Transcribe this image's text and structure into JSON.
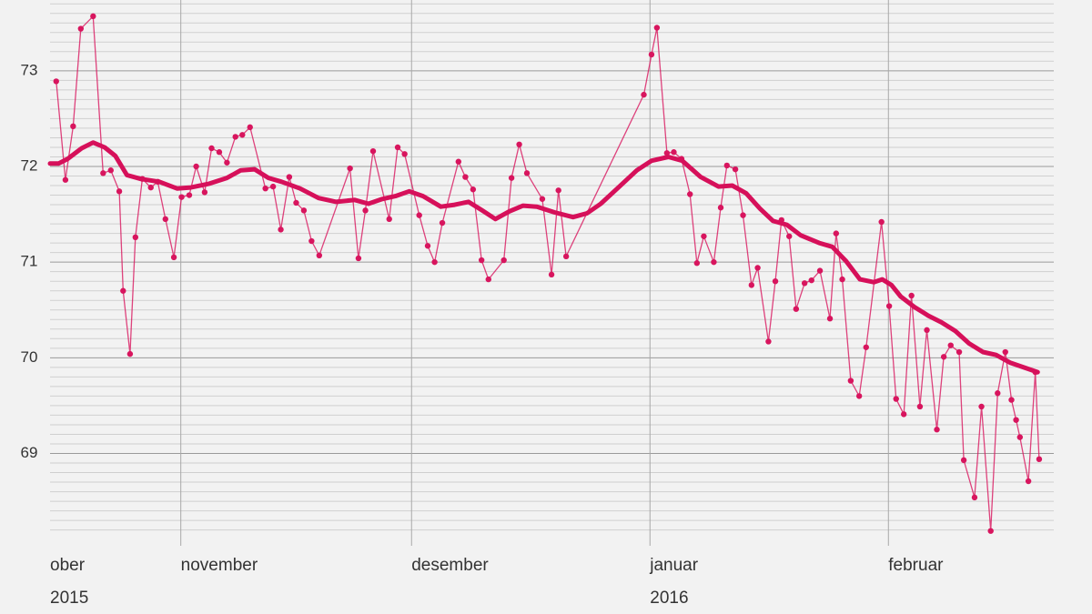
{
  "chart_data": {
    "type": "line",
    "xlim": [
      14.0,
      144.5
    ],
    "ylim": [
      68.13,
      73.74
    ],
    "xticks": [
      {
        "value": 14.0,
        "label": "ober"
      },
      {
        "value": 31,
        "label": "november"
      },
      {
        "value": 61,
        "label": "desember"
      },
      {
        "value": 92,
        "label": "januar"
      },
      {
        "value": 123,
        "label": "februar"
      }
    ],
    "year_labels": [
      {
        "value": 14.0,
        "label": "2015"
      },
      {
        "value": 92,
        "label": "2016"
      }
    ],
    "yticks": [
      69,
      70,
      71,
      72,
      73
    ],
    "minor_grid_step": 0.1,
    "grid": true,
    "series": [
      {
        "color": "#d8155e",
        "markers": true,
        "line_width": 1.3,
        "x": [
          14.8,
          16.0,
          17.0,
          18.0,
          19.6,
          20.9,
          21.9,
          23.0,
          23.5,
          24.4,
          25.1,
          26.0,
          27.1,
          28.0,
          29.0,
          30.1,
          31.1,
          32.1,
          33.0,
          34.1,
          35.0,
          36.0,
          37.0,
          38.1,
          39.0,
          40.0,
          42.0,
          43.0,
          44.0,
          45.1,
          46.0,
          47.0,
          48.0,
          49.0,
          53.0,
          54.1,
          55.0,
          56.0,
          58.1,
          59.2,
          60.1,
          62.0,
          63.1,
          64.0,
          65.0,
          67.1,
          68.0,
          69.0,
          70.1,
          71.0,
          73.0,
          74.0,
          75.0,
          76.0,
          78.0,
          79.2,
          80.1,
          81.1,
          91.2,
          92.2,
          92.9,
          94.2,
          95.1,
          96.1,
          97.2,
          98.1,
          99.0,
          100.3,
          101.2,
          102.0,
          103.1,
          104.1,
          105.2,
          106.0,
          107.4,
          108.3,
          109.1,
          110.1,
          111.0,
          112.1,
          113.0,
          114.1,
          115.4,
          116.2,
          117.0,
          118.1,
          119.2,
          120.1,
          122.1,
          123.1,
          124.0,
          125.0,
          126.0,
          127.1,
          128.0,
          129.3,
          130.2,
          131.1,
          132.2,
          132.8,
          134.2,
          135.1,
          136.3,
          137.2,
          138.2,
          139.0,
          139.6,
          140.1,
          141.2,
          142.1,
          142.6
        ],
        "values": [
          72.89,
          71.86,
          72.42,
          73.44,
          73.57,
          71.93,
          71.96,
          71.74,
          70.7,
          70.04,
          71.26,
          71.87,
          71.78,
          71.84,
          71.45,
          71.05,
          71.68,
          71.7,
          72.0,
          71.73,
          72.19,
          72.15,
          72.04,
          72.31,
          72.33,
          72.41,
          71.77,
          71.79,
          71.34,
          71.89,
          71.62,
          71.54,
          71.22,
          71.07,
          71.98,
          71.04,
          71.54,
          72.16,
          71.45,
          72.2,
          72.13,
          71.49,
          71.17,
          71.0,
          71.41,
          72.05,
          71.89,
          71.76,
          71.02,
          70.82,
          71.02,
          71.88,
          72.23,
          71.93,
          71.66,
          70.87,
          71.75,
          71.06,
          72.75,
          73.17,
          73.45,
          72.14,
          72.15,
          72.08,
          71.71,
          70.99,
          71.27,
          71.0,
          71.57,
          72.01,
          71.97,
          71.49,
          70.76,
          70.94,
          70.17,
          70.8,
          71.44,
          71.27,
          70.51,
          70.78,
          70.81,
          70.91,
          70.41,
          71.3,
          70.82,
          69.76,
          69.6,
          70.11,
          71.42,
          70.54,
          69.57,
          69.41,
          70.65,
          69.49,
          70.29,
          69.25,
          70.01,
          70.13,
          70.06,
          68.93,
          68.54,
          69.49,
          68.19,
          69.63,
          70.06,
          69.56,
          69.35,
          69.17,
          68.71,
          69.85,
          68.94
        ]
      },
      {
        "color": "#d6105a",
        "markers": false,
        "line_width": 5,
        "x": [
          14.0,
          15.1,
          16.3,
          18.1,
          19.6,
          21.1,
          22.5,
          24.0,
          25.8,
          28.2,
          30.5,
          32.3,
          34.7,
          37.0,
          38.8,
          40.6,
          42.4,
          44.1,
          46.5,
          48.9,
          51.2,
          53.6,
          55.4,
          57.2,
          58.9,
          60.7,
          62.5,
          64.8,
          66.6,
          68.4,
          70.2,
          71.9,
          73.7,
          75.5,
          77.3,
          79.6,
          82.0,
          83.8,
          85.6,
          87.9,
          90.3,
          92.2,
          94.4,
          96.2,
          98.6,
          100.9,
          102.7,
          104.5,
          106.3,
          108.0,
          109.8,
          111.6,
          114.0,
          115.7,
          117.5,
          119.3,
          121.1,
          122.2,
          123.4,
          124.6,
          126.4,
          128.2,
          129.9,
          131.7,
          133.5,
          135.3,
          137.0,
          138.8,
          142.4
        ],
        "values": [
          72.03,
          72.03,
          72.08,
          72.19,
          72.25,
          72.2,
          72.11,
          71.91,
          71.87,
          71.84,
          71.77,
          71.78,
          71.82,
          71.88,
          71.96,
          71.97,
          71.88,
          71.84,
          71.77,
          71.67,
          71.63,
          71.65,
          71.61,
          71.66,
          71.69,
          71.74,
          71.69,
          71.58,
          71.6,
          71.63,
          71.54,
          71.45,
          71.53,
          71.59,
          71.58,
          71.52,
          71.47,
          71.51,
          71.61,
          71.78,
          71.96,
          72.06,
          72.1,
          72.06,
          71.89,
          71.79,
          71.8,
          71.72,
          71.56,
          71.43,
          71.39,
          71.28,
          71.2,
          71.16,
          71.01,
          70.82,
          70.79,
          70.82,
          70.76,
          70.64,
          70.53,
          70.44,
          70.37,
          70.28,
          70.15,
          70.06,
          70.03,
          69.95,
          69.85
        ]
      }
    ]
  }
}
